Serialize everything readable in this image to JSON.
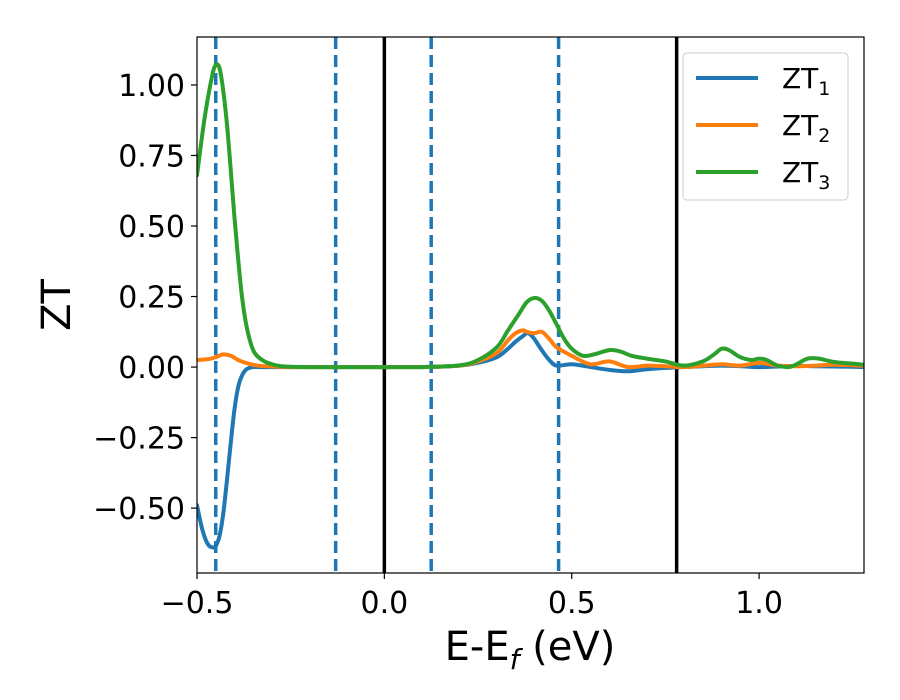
{
  "chart_data": {
    "type": "line",
    "xlabel": {
      "main": "E-E",
      "sub": "f",
      "suffix": " (eV)"
    },
    "ylabel": "ZT",
    "xlim": [
      -0.5,
      1.28
    ],
    "ylim": [
      -0.73,
      1.17
    ],
    "x_ticks": [
      {
        "value": -0.5,
        "label": "−0.5"
      },
      {
        "value": 0.0,
        "label": "0.0"
      },
      {
        "value": 0.5,
        "label": "0.5"
      },
      {
        "value": 1.0,
        "label": "1.0"
      }
    ],
    "y_ticks": [
      {
        "value": 1.0,
        "label": "1.00"
      },
      {
        "value": 0.75,
        "label": "0.75"
      },
      {
        "value": 0.5,
        "label": "0.50"
      },
      {
        "value": 0.25,
        "label": "0.25"
      },
      {
        "value": 0.0,
        "label": "0.00"
      },
      {
        "value": -0.25,
        "label": "−0.25"
      },
      {
        "value": -0.5,
        "label": "−0.50"
      }
    ],
    "grid": false,
    "legend_placement": "top-right",
    "vertical_lines": [
      {
        "x": -0.45,
        "style": "dashed",
        "color": "#1f77b4"
      },
      {
        "x": -0.13,
        "style": "dashed",
        "color": "#1f77b4"
      },
      {
        "x": 0.0,
        "style": "solid",
        "color": "#000000"
      },
      {
        "x": 0.125,
        "style": "dashed",
        "color": "#1f77b4"
      },
      {
        "x": 0.465,
        "style": "dashed",
        "color": "#1f77b4"
      },
      {
        "x": 0.78,
        "style": "solid",
        "color": "#000000"
      }
    ],
    "series": [
      {
        "name": "ZT",
        "sub": "1",
        "color": "#1f77b4",
        "x": [
          -0.5,
          -0.485,
          -0.47,
          -0.455,
          -0.45,
          -0.44,
          -0.43,
          -0.42,
          -0.41,
          -0.4,
          -0.39,
          -0.38,
          -0.37,
          -0.36,
          -0.35,
          -0.33,
          -0.3,
          -0.25,
          -0.2,
          -0.1,
          0.0,
          0.1,
          0.2,
          0.25,
          0.3,
          0.33,
          0.35,
          0.37,
          0.38,
          0.39,
          0.4,
          0.42,
          0.44,
          0.46,
          0.5,
          0.55,
          0.6,
          0.65,
          0.7,
          0.75,
          0.8,
          0.85,
          0.9,
          0.95,
          1.0,
          1.05,
          1.1,
          1.15,
          1.2,
          1.25,
          1.28
        ],
        "y": [
          -0.49,
          -0.58,
          -0.63,
          -0.64,
          -0.635,
          -0.6,
          -0.52,
          -0.4,
          -0.27,
          -0.15,
          -0.07,
          -0.03,
          -0.01,
          -0.003,
          0.0,
          0.0,
          0.0,
          0.0,
          0.0,
          0.0,
          0.0,
          0.0,
          0.005,
          0.015,
          0.035,
          0.065,
          0.09,
          0.11,
          0.12,
          0.115,
          0.1,
          0.06,
          0.025,
          0.005,
          0.01,
          0.0,
          -0.01,
          -0.015,
          -0.008,
          -0.003,
          0.0,
          0.003,
          0.005,
          0.003,
          0.0,
          0.002,
          0.004,
          0.003,
          0.002,
          0.001,
          0.0
        ]
      },
      {
        "name": "ZT",
        "sub": "2",
        "color": "#ff7f0e",
        "x": [
          -0.5,
          -0.47,
          -0.45,
          -0.43,
          -0.41,
          -0.39,
          -0.37,
          -0.35,
          -0.33,
          -0.3,
          -0.25,
          -0.2,
          -0.1,
          0.0,
          0.1,
          0.2,
          0.25,
          0.3,
          0.33,
          0.35,
          0.37,
          0.38,
          0.4,
          0.42,
          0.44,
          0.46,
          0.5,
          0.55,
          0.6,
          0.65,
          0.7,
          0.75,
          0.8,
          0.85,
          0.9,
          0.95,
          1.0,
          1.05,
          1.1,
          1.15,
          1.2,
          1.28
        ],
        "y": [
          0.025,
          0.028,
          0.035,
          0.045,
          0.04,
          0.025,
          0.015,
          0.008,
          0.004,
          0.002,
          0.0,
          0.0,
          0.0,
          0.0,
          0.0,
          0.005,
          0.02,
          0.05,
          0.095,
          0.12,
          0.13,
          0.125,
          0.12,
          0.125,
          0.1,
          0.07,
          0.04,
          0.01,
          0.02,
          0.0,
          0.005,
          0.003,
          0.0,
          0.005,
          0.01,
          0.005,
          0.015,
          0.005,
          0.003,
          0.005,
          0.008,
          0.005
        ]
      },
      {
        "name": "ZT",
        "sub": "3",
        "color": "#2ca02c",
        "x": [
          -0.5,
          -0.48,
          -0.46,
          -0.45,
          -0.44,
          -0.43,
          -0.42,
          -0.41,
          -0.4,
          -0.39,
          -0.38,
          -0.37,
          -0.36,
          -0.35,
          -0.34,
          -0.32,
          -0.3,
          -0.28,
          -0.25,
          -0.2,
          -0.1,
          0.0,
          0.1,
          0.2,
          0.25,
          0.3,
          0.33,
          0.36,
          0.38,
          0.4,
          0.42,
          0.44,
          0.46,
          0.48,
          0.5,
          0.53,
          0.56,
          0.6,
          0.63,
          0.66,
          0.7,
          0.75,
          0.8,
          0.85,
          0.88,
          0.9,
          0.92,
          0.95,
          0.98,
          1.0,
          1.02,
          1.05,
          1.08,
          1.1,
          1.13,
          1.16,
          1.2,
          1.25,
          1.28
        ],
        "y": [
          0.68,
          0.88,
          1.03,
          1.07,
          1.06,
          0.98,
          0.86,
          0.7,
          0.53,
          0.38,
          0.25,
          0.16,
          0.1,
          0.06,
          0.04,
          0.02,
          0.01,
          0.004,
          0.001,
          0.0,
          0.0,
          0.0,
          0.0,
          0.006,
          0.025,
          0.07,
          0.13,
          0.19,
          0.23,
          0.245,
          0.235,
          0.2,
          0.15,
          0.1,
          0.065,
          0.04,
          0.045,
          0.06,
          0.055,
          0.04,
          0.03,
          0.02,
          0.005,
          0.02,
          0.045,
          0.065,
          0.06,
          0.035,
          0.025,
          0.03,
          0.025,
          0.005,
          0.0,
          0.01,
          0.03,
          0.03,
          0.018,
          0.012,
          0.008
        ]
      }
    ]
  }
}
